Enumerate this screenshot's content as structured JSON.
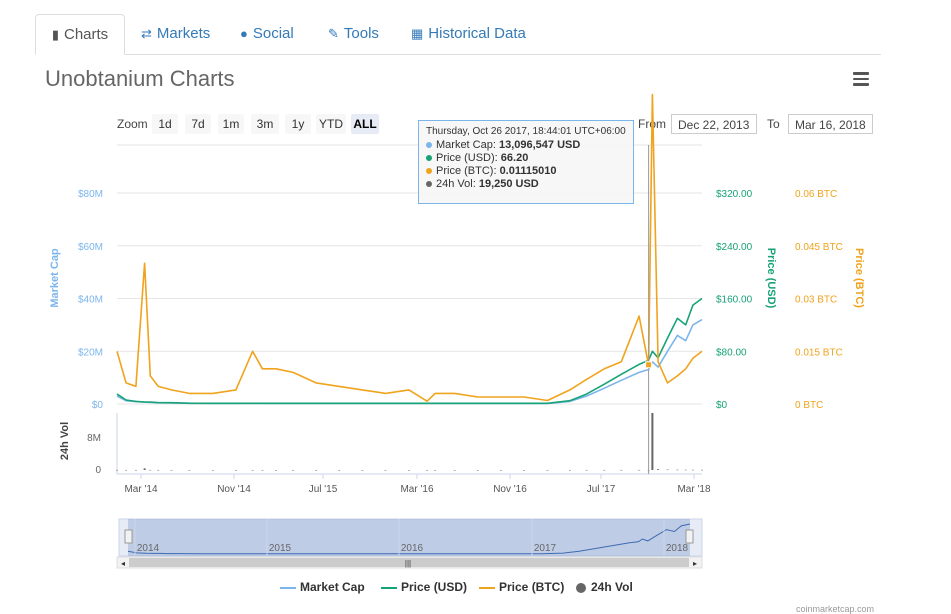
{
  "tabs": [
    {
      "label": "Charts",
      "icon": "bar-chart-icon"
    },
    {
      "label": "Markets",
      "icon": "exchange-icon"
    },
    {
      "label": "Social",
      "icon": "globe-icon"
    },
    {
      "label": "Tools",
      "icon": "wrench-icon"
    },
    {
      "label": "Historical Data",
      "icon": "calendar-icon"
    }
  ],
  "page_title": "Unobtanium Charts",
  "zoom": {
    "label": "Zoom",
    "options": [
      "1d",
      "7d",
      "1m",
      "3m",
      "1y",
      "YTD",
      "ALL"
    ],
    "selected": "ALL"
  },
  "range": {
    "from_label": "From",
    "from_value": "Dec 22, 2013",
    "to_label": "To",
    "to_value": "Mar 16, 2018"
  },
  "tooltip": {
    "header": "Thursday, Oct 26 2017, 18:44:01 UTC+06:00",
    "rows": [
      {
        "label": "Market Cap:",
        "value": "13,096,547 USD",
        "color": "#7cb5ec"
      },
      {
        "label": "Price (USD):",
        "value": "66.20",
        "color": "#17a277"
      },
      {
        "label": "Price (BTC):",
        "value": "0.01115010",
        "color": "#f0a31d"
      },
      {
        "label": "24h Vol:",
        "value": "19,250 USD",
        "color": "#666666"
      }
    ]
  },
  "axes": {
    "market_cap_title": "Market Cap",
    "market_cap_ticks": [
      "$0",
      "$20M",
      "$40M",
      "$60M",
      "$80M"
    ],
    "price_usd_title": "Price (USD)",
    "price_usd_ticks": [
      "$0",
      "$80.00",
      "$160.00",
      "$240.00",
      "$320.00"
    ],
    "price_btc_title": "Price (BTC)",
    "price_btc_ticks": [
      "0 BTC",
      "0.015 BTC",
      "0.03 BTC",
      "0.045 BTC",
      "0.06 BTC"
    ],
    "vol_title": "24h Vol",
    "vol_ticks": [
      "0",
      "8M"
    ],
    "x_ticks": [
      "Mar '14",
      "Nov '14",
      "Jul '15",
      "Mar '16",
      "Nov '16",
      "Jul '17",
      "Mar '18"
    ],
    "navigator_ticks": [
      "2014",
      "2015",
      "2016",
      "2017",
      "2018"
    ]
  },
  "legend": [
    {
      "label": "Market Cap",
      "color": "#7cb5ec",
      "kind": "line"
    },
    {
      "label": "Price (USD)",
      "color": "#17a277",
      "kind": "line"
    },
    {
      "label": "Price (BTC)",
      "color": "#f0a31d",
      "kind": "line"
    },
    {
      "label": "24h Vol",
      "color": "#666666",
      "kind": "circle"
    }
  ],
  "credit": "coinmarketcap.com",
  "colors": {
    "market_cap": "#7cb5ec",
    "price_usd": "#17a277",
    "price_btc": "#f0a31d",
    "volume": "#666666"
  },
  "chart_data": {
    "type": "line",
    "x": [
      "2013-12-22",
      "2014-01-15",
      "2014-02-10",
      "2014-03-05",
      "2014-03-20",
      "2014-04-10",
      "2014-05-15",
      "2014-07-01",
      "2014-09-01",
      "2014-11-01",
      "2014-12-15",
      "2015-01-10",
      "2015-02-15",
      "2015-04-01",
      "2015-06-01",
      "2015-08-01",
      "2015-10-01",
      "2015-12-01",
      "2016-02-01",
      "2016-03-20",
      "2016-04-10",
      "2016-06-01",
      "2016-08-01",
      "2016-10-01",
      "2016-12-01",
      "2017-02-01",
      "2017-04-01",
      "2017-05-15",
      "2017-07-01",
      "2017-08-15",
      "2017-10-01",
      "2017-10-26",
      "2017-11-05",
      "2017-11-20",
      "2017-12-15",
      "2018-01-10",
      "2018-02-01",
      "2018-02-20",
      "2018-03-16"
    ],
    "series": [
      {
        "name": "Price (BTC)",
        "axis": "btc",
        "values": [
          0.015,
          0.006,
          0.005,
          0.04,
          0.008,
          0.005,
          0.004,
          0.003,
          0.003,
          0.004,
          0.015,
          0.01,
          0.01,
          0.009,
          0.006,
          0.005,
          0.004,
          0.003,
          0.004,
          0.0008,
          0.003,
          0.003,
          0.002,
          0.002,
          0.002,
          0.001,
          0.004,
          0.007,
          0.01,
          0.012,
          0.025,
          0.011,
          0.088,
          0.012,
          0.006,
          0.008,
          0.01,
          0.013,
          0.015
        ]
      },
      {
        "name": "Price (USD)",
        "axis": "usd",
        "values": [
          15,
          6,
          4,
          3,
          3,
          2,
          2,
          1,
          1,
          1,
          1,
          1,
          1,
          1,
          1,
          1,
          1,
          1,
          1,
          1,
          1,
          1,
          1,
          1,
          1,
          1,
          5,
          15,
          30,
          45,
          60,
          66.2,
          80,
          70,
          100,
          130,
          120,
          150,
          160
        ]
      },
      {
        "name": "Market Cap",
        "axis": "mcap",
        "values": [
          3000000,
          1200000,
          900000,
          700000,
          600000,
          500000,
          400000,
          300000,
          200000,
          200000,
          250000,
          200000,
          200000,
          200000,
          200000,
          200000,
          200000,
          200000,
          200000,
          200000,
          200000,
          200000,
          200000,
          200000,
          200000,
          200000,
          1000000,
          3000000,
          6000000,
          9000000,
          12000000,
          13096547,
          16000000,
          14000000,
          20000000,
          26000000,
          24000000,
          30000000,
          32000000
        ]
      },
      {
        "name": "24h Vol",
        "axis": "vol",
        "values": [
          30000,
          10000,
          8000,
          400000,
          20000,
          10000,
          5000,
          3000,
          3000,
          3000,
          5000,
          4000,
          3000,
          3000,
          3000,
          2000,
          2000,
          2000,
          2000,
          2000,
          2000,
          2000,
          2000,
          2000,
          2000,
          2000,
          5000,
          8000,
          10000,
          15000,
          18000,
          19250,
          16000000,
          200000,
          100000,
          80000,
          60000,
          50000,
          40000
        ]
      }
    ],
    "ylim_mcap": [
      0,
      80000000
    ],
    "ylim_usd": [
      0,
      320
    ],
    "ylim_btc": [
      0,
      0.06
    ],
    "ylim_vol": [
      0,
      8000000
    ],
    "grid": true,
    "legend_placement": "bottom"
  }
}
